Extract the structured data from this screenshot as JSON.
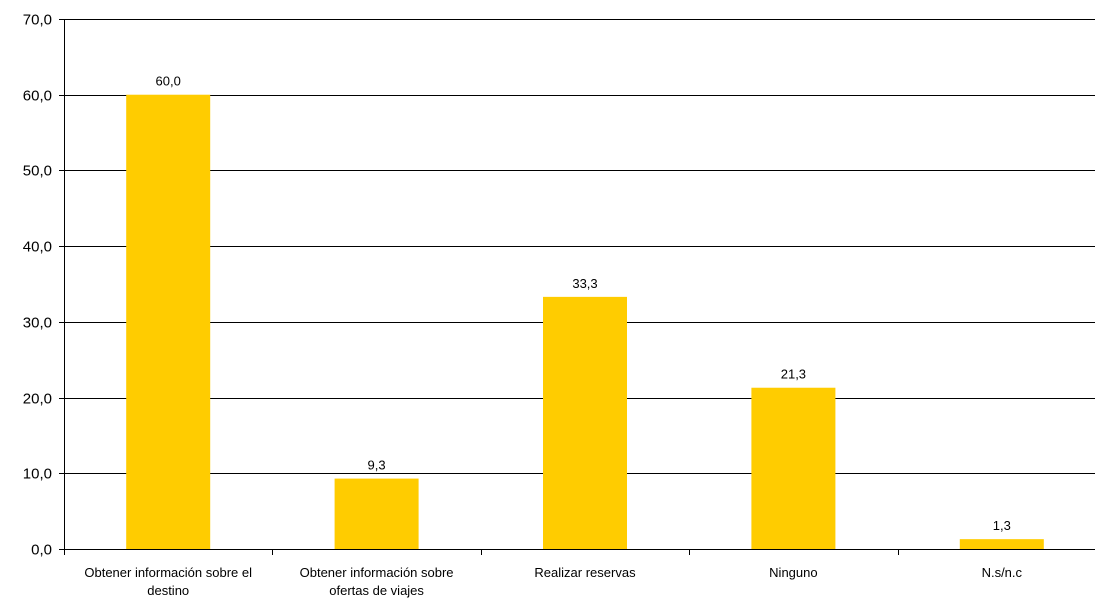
{
  "chart_data": {
    "type": "bar",
    "categories": [
      [
        "Obtener información sobre el",
        "destino"
      ],
      [
        "Obtener información sobre",
        "ofertas de viajes"
      ],
      [
        "Realizar reservas"
      ],
      [
        "Ninguno"
      ],
      [
        "N.s/n.c"
      ]
    ],
    "values": [
      60.0,
      9.3,
      33.3,
      21.3,
      1.3
    ],
    "value_labels": [
      "60,0",
      "9,3",
      "33,3",
      "21,3",
      "1,3"
    ],
    "ylim": [
      0,
      70
    ],
    "yticks": [
      0,
      10,
      20,
      30,
      40,
      50,
      60,
      70
    ],
    "ytick_labels": [
      "0,0",
      "10,0",
      "20,0",
      "30,0",
      "40,0",
      "50,0",
      "60,0",
      "70,0"
    ],
    "grid": true,
    "bar_color": "#FFCC00",
    "grid_color": "#000000"
  }
}
